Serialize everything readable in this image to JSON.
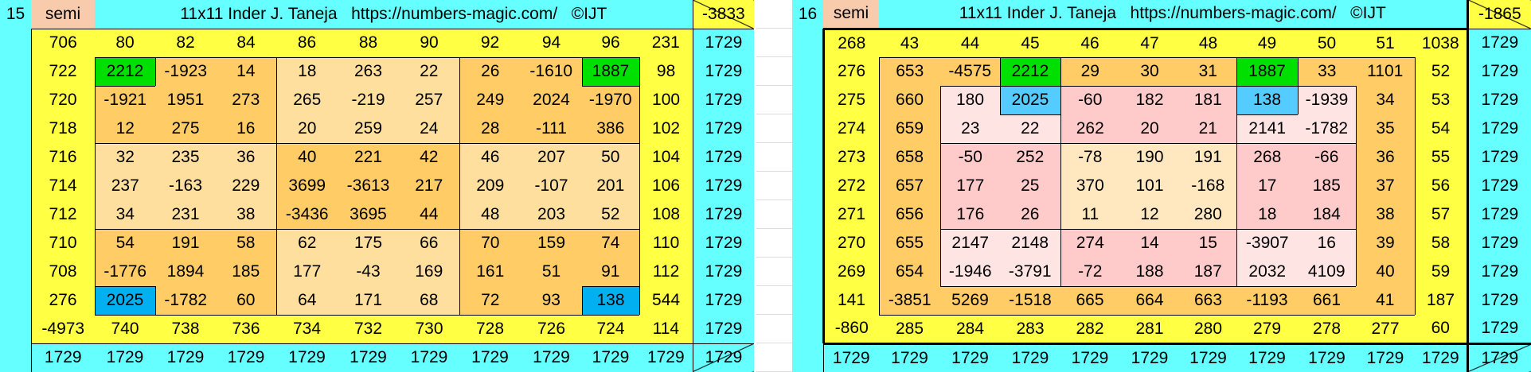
{
  "palette": {
    "yellow": "#ffff44",
    "cyan": "#66ffff",
    "orange": "#ffcc66",
    "light_orange": "#ffdf9e",
    "green": "#00e000",
    "blue": "#00b0f0",
    "light_blue": "#55ccff",
    "pink": "#ffcaca",
    "light_pink": "#ffe4e4",
    "cream": "#ffe8c0",
    "semi": "#f8cbad"
  },
  "tables": [
    {
      "label": "15",
      "semi": "semi",
      "title": "11x11 Inder J. Taneja   https://numbers-magic.com/   ©IJT",
      "corner": "-3833",
      "rows": [
        [
          "706",
          "80",
          "82",
          "84",
          "86",
          "88",
          "90",
          "92",
          "94",
          "96",
          "231",
          "1729"
        ],
        [
          "722",
          "2212",
          "-1923",
          "14",
          "18",
          "263",
          "22",
          "26",
          "-1610",
          "1887",
          "98",
          "1729"
        ],
        [
          "720",
          "-1921",
          "1951",
          "273",
          "265",
          "-219",
          "257",
          "249",
          "2024",
          "-1970",
          "100",
          "1729"
        ],
        [
          "718",
          "12",
          "275",
          "16",
          "20",
          "259",
          "24",
          "28",
          "-111",
          "386",
          "102",
          "1729"
        ],
        [
          "716",
          "32",
          "235",
          "36",
          "40",
          "221",
          "42",
          "46",
          "207",
          "50",
          "104",
          "1729"
        ],
        [
          "714",
          "237",
          "-163",
          "229",
          "3699",
          "-3613",
          "217",
          "209",
          "-107",
          "201",
          "106",
          "1729"
        ],
        [
          "712",
          "34",
          "231",
          "38",
          "-3436",
          "3695",
          "44",
          "48",
          "203",
          "52",
          "108",
          "1729"
        ],
        [
          "710",
          "54",
          "191",
          "58",
          "62",
          "175",
          "66",
          "70",
          "159",
          "74",
          "110",
          "1729"
        ],
        [
          "708",
          "-1776",
          "1894",
          "185",
          "177",
          "-43",
          "169",
          "161",
          "51",
          "91",
          "112",
          "1729"
        ],
        [
          "276",
          "2025",
          "-1782",
          "60",
          "64",
          "171",
          "68",
          "72",
          "93",
          "138",
          "544",
          "1729"
        ],
        [
          "-4973",
          "740",
          "738",
          "736",
          "734",
          "732",
          "730",
          "728",
          "726",
          "724",
          "114",
          "1729"
        ]
      ],
      "bottom": [
        "1729",
        "1729",
        "1729",
        "1729",
        "1729",
        "1729",
        "1729",
        "1729",
        "1729",
        "1729",
        "1729",
        "1729"
      ],
      "color_map": [
        "YYYYYYYYYYY",
        "YGOOLLLOOGY",
        "YOOOLLLOOOY",
        "YOOOLLLOOOY",
        "YLLLOOOLLLY",
        "YLLLOOOLLLY",
        "YLLLOOOLLLY",
        "YOOOLLLOOOY",
        "YOOOLLLOOOY",
        "YBOOLLLOOBY",
        "YYYYYYYYYYY"
      ]
    },
    {
      "label": "16",
      "semi": "semi",
      "title": "11x11 Inder J. Taneja   https://numbers-magic.com/   ©IJT",
      "corner": "-1865",
      "rows": [
        [
          "268",
          "43",
          "44",
          "45",
          "46",
          "47",
          "48",
          "49",
          "50",
          "51",
          "1038",
          "1729"
        ],
        [
          "276",
          "653",
          "-4575",
          "2212",
          "29",
          "30",
          "31",
          "1887",
          "33",
          "1101",
          "52",
          "1729"
        ],
        [
          "275",
          "660",
          "180",
          "2025",
          "-60",
          "182",
          "181",
          "138",
          "-1939",
          "34",
          "53",
          "1729"
        ],
        [
          "274",
          "659",
          "23",
          "22",
          "262",
          "20",
          "21",
          "2141",
          "-1782",
          "35",
          "54",
          "1729"
        ],
        [
          "273",
          "658",
          "-50",
          "252",
          "-78",
          "190",
          "191",
          "268",
          "-66",
          "36",
          "55",
          "1729"
        ],
        [
          "272",
          "657",
          "177",
          "25",
          "370",
          "101",
          "-168",
          "17",
          "185",
          "37",
          "56",
          "1729"
        ],
        [
          "271",
          "656",
          "176",
          "26",
          "11",
          "12",
          "280",
          "18",
          "184",
          "38",
          "57",
          "1729"
        ],
        [
          "270",
          "655",
          "2147",
          "2148",
          "274",
          "14",
          "15",
          "-3907",
          "16",
          "39",
          "58",
          "1729"
        ],
        [
          "269",
          "654",
          "-1946",
          "-3791",
          "-72",
          "188",
          "187",
          "2032",
          "4109",
          "40",
          "59",
          "1729"
        ],
        [
          "141",
          "-3851",
          "5269",
          "-1518",
          "665",
          "664",
          "663",
          "-1193",
          "661",
          "41",
          "187",
          "1729"
        ],
        [
          "-860",
          "285",
          "284",
          "283",
          "282",
          "281",
          "280",
          "279",
          "278",
          "277",
          "60",
          "1729"
        ]
      ],
      "bottom": [
        "1729",
        "1729",
        "1729",
        "1729",
        "1729",
        "1729",
        "1729",
        "1729",
        "1729",
        "1729",
        "1729",
        "1729"
      ],
      "color_map": [
        "YYYYYYYYYYY",
        "YOOGOOOGOOY",
        "YOQbPPPbQOY",
        "YOQQPPPQQOY",
        "YOPPCCCPPOY",
        "YOPPCCCPPOY",
        "YOPPCCCPPOY",
        "YOQQPPPQQOY",
        "YOQQPPPQQOY",
        "YOOOOOOOOOY",
        "YYYYYYYYYYY"
      ]
    }
  ]
}
